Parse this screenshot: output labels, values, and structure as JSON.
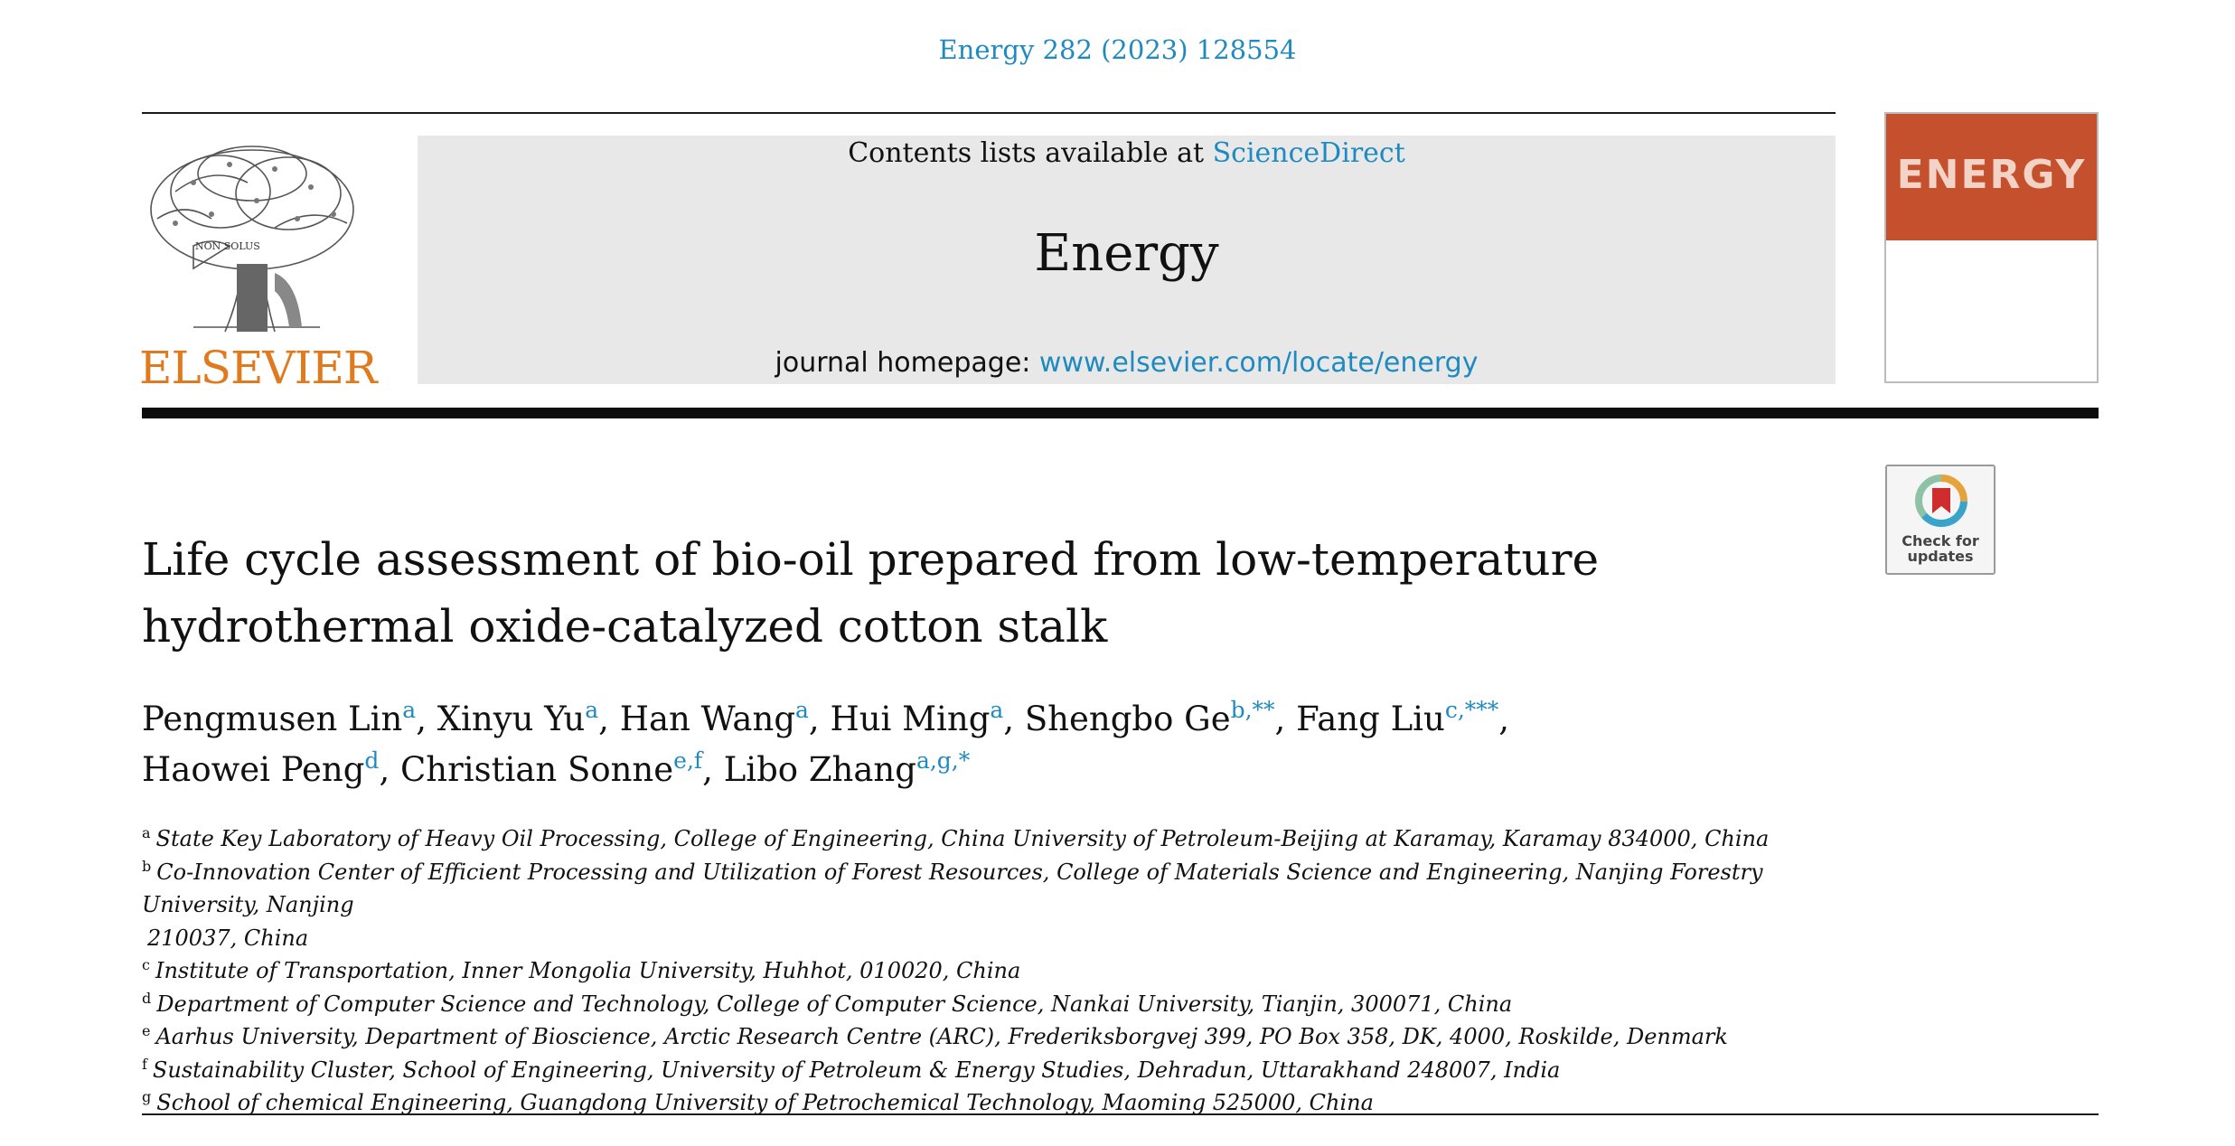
{
  "header": {
    "citation": "Energy 282 (2023) 128554"
  },
  "publisher": {
    "name": "ELSEVIER",
    "logo_icon": "tree-engraving-icon",
    "motto": "NON SOLUS"
  },
  "banner": {
    "contents_prefix": "Contents lists available at ",
    "contents_link": "ScienceDirect",
    "journal_title": "Energy",
    "homepage_prefix": "journal homepage: ",
    "homepage_link": "www.elsevier.com/locate/energy"
  },
  "cover": {
    "word": "ENERGY",
    "accent_color": "#c5502e"
  },
  "badge": {
    "icon": "bookmark-ring-icon",
    "line1": "Check for",
    "line2": "updates"
  },
  "article": {
    "title_line1": "Life cycle assessment of bio-oil prepared from low-temperature",
    "title_line2": "hydrothermal oxide-catalyzed cotton stalk",
    "authors": [
      {
        "name": "Pengmusen Lin",
        "marks": "a",
        "sep": ", "
      },
      {
        "name": "Xinyu Yu",
        "marks": "a",
        "sep": ", "
      },
      {
        "name": "Han Wang",
        "marks": "a",
        "sep": ", "
      },
      {
        "name": "Hui Ming",
        "marks": "a",
        "sep": ", "
      },
      {
        "name": "Shengbo Ge",
        "marks": "b,**",
        "sep": ", "
      },
      {
        "name": "Fang Liu",
        "marks": "c,***",
        "sep": ","
      },
      {
        "name": "Haowei Peng",
        "marks": "d",
        "sep": ", "
      },
      {
        "name": "Christian Sonne",
        "marks": "e,f",
        "sep": ", "
      },
      {
        "name": "Libo Zhang",
        "marks": "a,g,*",
        "sep": ""
      }
    ],
    "affiliations": [
      {
        "mark": "a",
        "text": "State Key Laboratory of Heavy Oil Processing, College of Engineering, China University of Petroleum-Beijing at Karamay, Karamay 834000, China"
      },
      {
        "mark": "b",
        "text": "Co-Innovation Center of Efficient Processing and Utilization of Forest Resources, College of Materials Science and Engineering, Nanjing Forestry University, Nanjing"
      },
      {
        "mark": "",
        "text": "210037, China"
      },
      {
        "mark": "c",
        "text": "Institute of Transportation, Inner Mongolia University, Huhhot, 010020, China"
      },
      {
        "mark": "d",
        "text": "Department of Computer Science and Technology, College of Computer Science, Nankai University, Tianjin, 300071, China"
      },
      {
        "mark": "e",
        "text": "Aarhus University, Department of Bioscience, Arctic Research Centre (ARC), Frederiksborgvej 399, PO Box 358, DK, 4000, Roskilde, Denmark"
      },
      {
        "mark": "f",
        "text": "Sustainability Cluster, School of Engineering, University of Petroleum & Energy Studies, Dehradun, Uttarakhand 248007, India"
      },
      {
        "mark": "g",
        "text": "School of chemical Engineering, Guangdong University of Petrochemical Technology, Maoming 525000, China"
      }
    ]
  }
}
